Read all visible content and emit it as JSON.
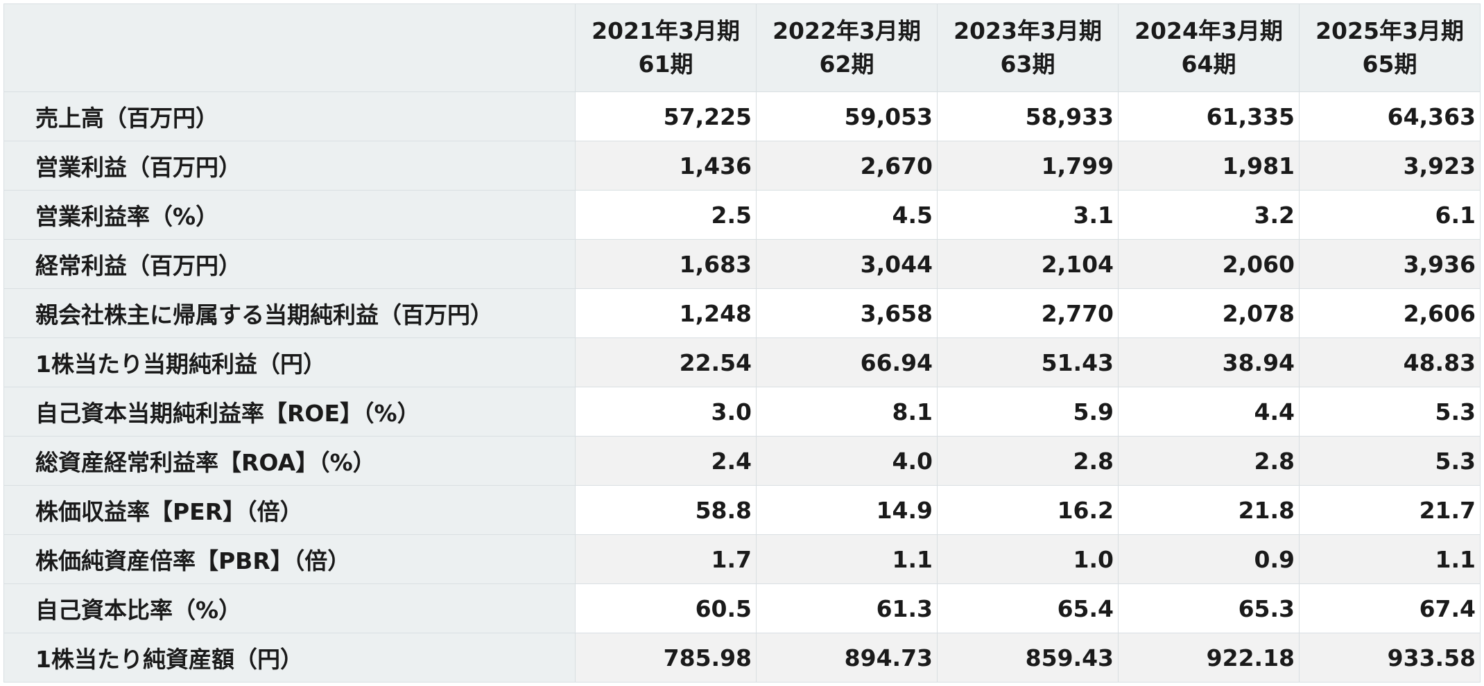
{
  "table": {
    "corner": "",
    "columns": [
      {
        "year": "2021年3月期",
        "period": "61期"
      },
      {
        "year": "2022年3月期",
        "period": "62期"
      },
      {
        "year": "2023年3月期",
        "period": "63期"
      },
      {
        "year": "2024年3月期",
        "period": "64期"
      },
      {
        "year": "2025年3月期",
        "period": "65期"
      }
    ],
    "rows": [
      {
        "label": "売上高（百万円）",
        "values": [
          "57,225",
          "59,053",
          "58,933",
          "61,335",
          "64,363"
        ]
      },
      {
        "label": "営業利益（百万円）",
        "values": [
          "1,436",
          "2,670",
          "1,799",
          "1,981",
          "3,923"
        ]
      },
      {
        "label": "営業利益率（%）",
        "values": [
          "2.5",
          "4.5",
          "3.1",
          "3.2",
          "6.1"
        ]
      },
      {
        "label": "経常利益（百万円）",
        "values": [
          "1,683",
          "3,044",
          "2,104",
          "2,060",
          "3,936"
        ]
      },
      {
        "label": "親会社株主に帰属する当期純利益（百万円）",
        "values": [
          "1,248",
          "3,658",
          "2,770",
          "2,078",
          "2,606"
        ]
      },
      {
        "label": "1株当たり当期純利益（円）",
        "values": [
          "22.54",
          "66.94",
          "51.43",
          "38.94",
          "48.83"
        ]
      },
      {
        "label": "自己資本当期純利益率【ROE】（%）",
        "values": [
          "3.0",
          "8.1",
          "5.9",
          "4.4",
          "5.3"
        ]
      },
      {
        "label": "総資産経常利益率【ROA】（%）",
        "values": [
          "2.4",
          "4.0",
          "2.8",
          "2.8",
          "5.3"
        ]
      },
      {
        "label": "株価収益率【PER】（倍）",
        "values": [
          "58.8",
          "14.9",
          "16.2",
          "21.8",
          "21.7"
        ]
      },
      {
        "label": "株価純資産倍率【PBR】（倍）",
        "values": [
          "1.7",
          "1.1",
          "1.0",
          "0.9",
          "1.1"
        ]
      },
      {
        "label": "自己資本比率（%）",
        "values": [
          "60.5",
          "61.3",
          "65.4",
          "65.3",
          "67.4"
        ]
      },
      {
        "label": "1株当たり純資産額（円）",
        "values": [
          "785.98",
          "894.73",
          "859.43",
          "922.18",
          "933.58"
        ]
      }
    ]
  }
}
